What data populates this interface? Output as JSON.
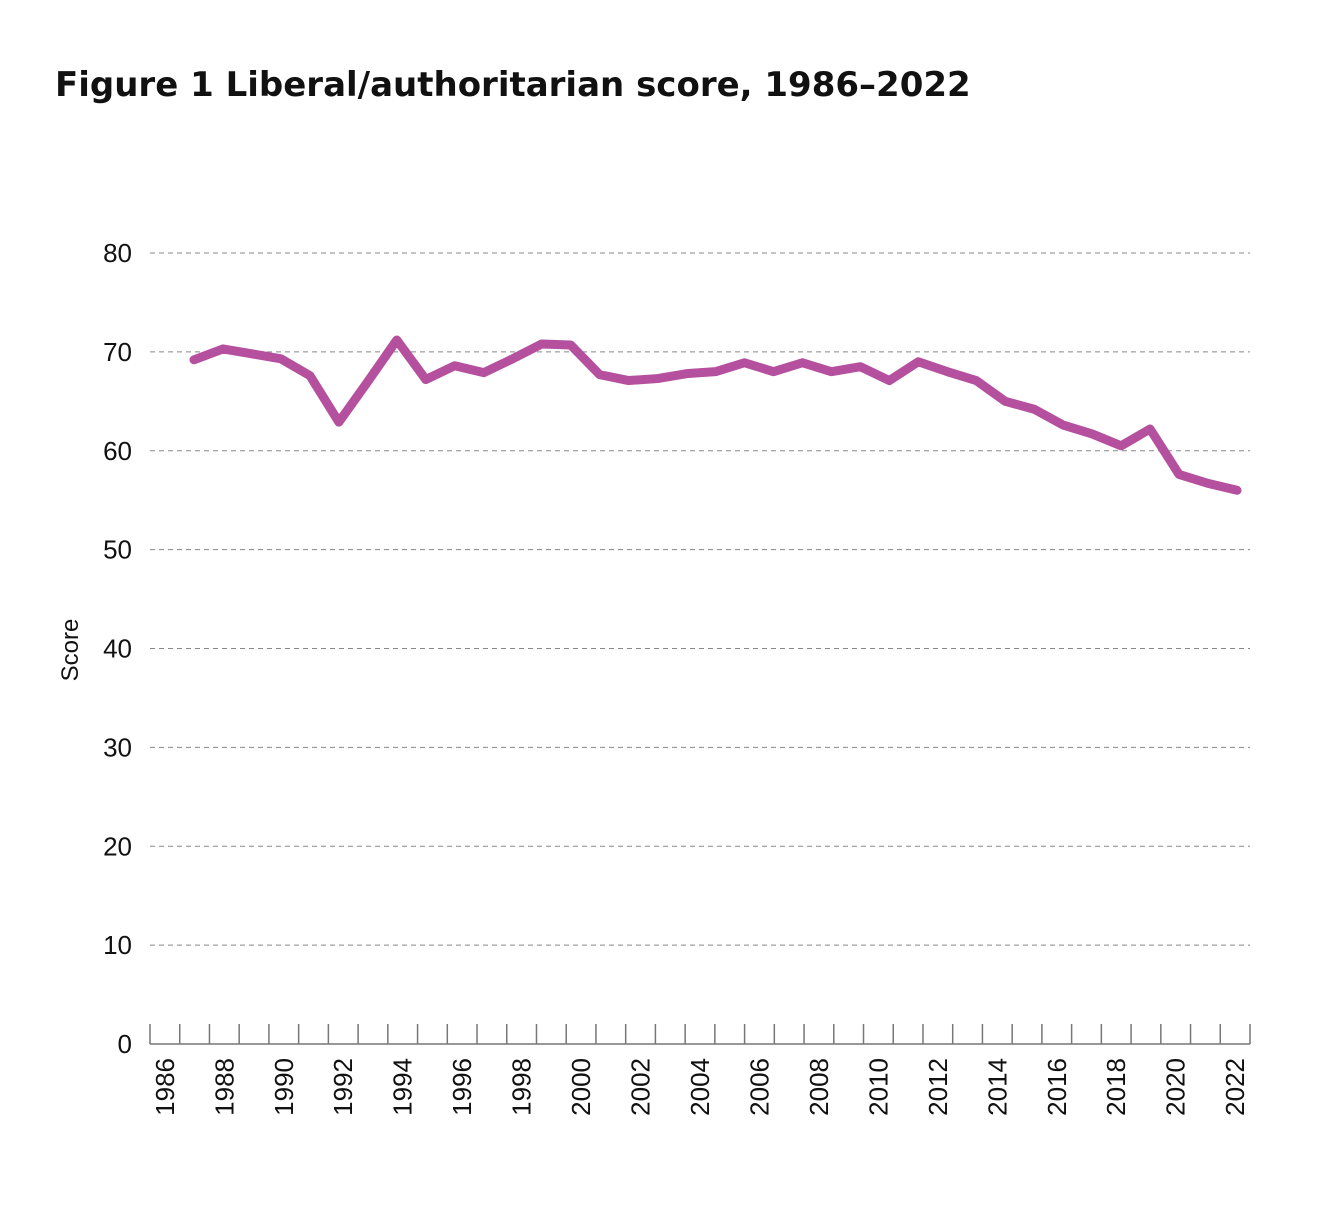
{
  "chart_data": {
    "type": "line",
    "title": "Figure 1 Liberal/authoritarian score, 1986–2022",
    "y_label": "Score",
    "categories": [
      "1986",
      null,
      "1988",
      null,
      "1990",
      null,
      "1992",
      null,
      "1994",
      null,
      "1996",
      null,
      "1998",
      null,
      "2000",
      null,
      "2002",
      null,
      "2004",
      null,
      "2006",
      null,
      "2008",
      null,
      "2010",
      null,
      "2012",
      null,
      "2014",
      null,
      "2016",
      null,
      "2018",
      null,
      "2020",
      null,
      "2022"
    ],
    "series": [
      {
        "name": "Score",
        "color": "#b5509e",
        "values": [
          69.2,
          70.3,
          69.8,
          69.3,
          67.6,
          62.9,
          67.0,
          71.2,
          67.2,
          68.6,
          67.9,
          69.3,
          70.8,
          70.7,
          67.7,
          67.1,
          67.3,
          67.8,
          68.0,
          68.9,
          68.0,
          68.9,
          68.0,
          68.5,
          67.1,
          69.0,
          68.0,
          67.1,
          65.0,
          64.2,
          62.6,
          61.7,
          60.5,
          62.2,
          57.6,
          56.7,
          56.0
        ]
      }
    ],
    "ylim": [
      0,
      80
    ],
    "yticks": [
      0,
      10,
      20,
      30,
      40,
      50,
      60,
      70,
      80
    ],
    "grid": true
  }
}
